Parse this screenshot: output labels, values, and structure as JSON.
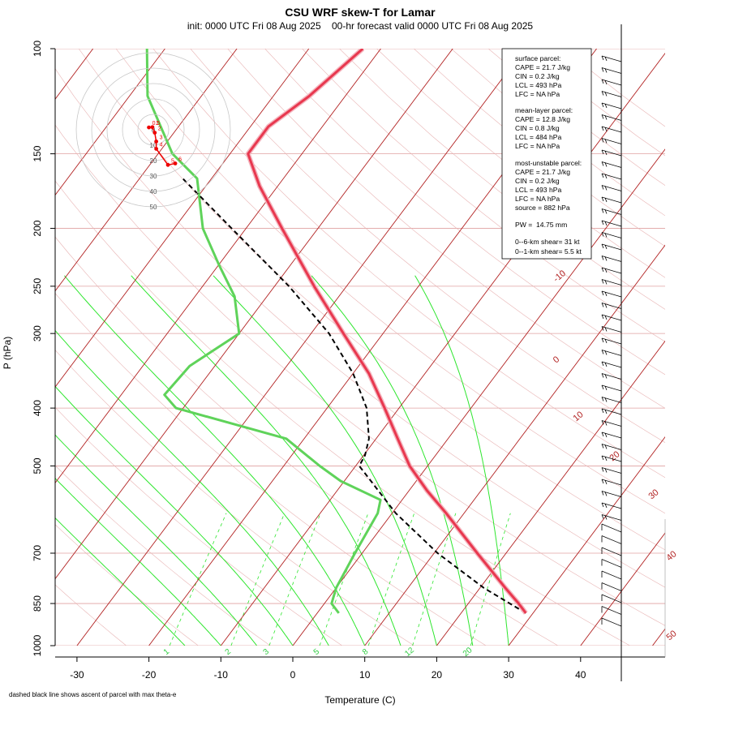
{
  "header": {
    "title": "CSU WRF skew-T for Lamar",
    "subtitle": "init: 0000 UTC Fri 08 Aug 2025    00-hr forecast valid 0000 UTC Fri 08 Aug 2025"
  },
  "footnote": "dashed black line shows ascent of parcel with max theta-e",
  "colors": {
    "temperature": "#e8384f",
    "dewpoint": "#5fd35a",
    "parcel": "#000000",
    "isotherm": "#b22222",
    "isobar": "#e0a0a0",
    "dry_adiabat": "#e8b4b4",
    "moist_adiabat": "#2ee62e",
    "mixing_ratio": "#2ee62e"
  },
  "stats": {
    "surface": {
      "heading": "surface parcel:",
      "lines": [
        "CAPE = 21.7 J/kg",
        "CIN = 0.2 J/kg",
        "LCL = 493 hPa",
        "LFC = NA hPa"
      ]
    },
    "mixed": {
      "heading": "mean-layer parcel:",
      "lines": [
        "CAPE = 12.8 J/kg",
        "CIN = 0.8 J/kg",
        "LCL = 484 hPa",
        "LFC = NA hPa"
      ]
    },
    "mu": {
      "heading": "most-unstable parcel:",
      "lines": [
        "CAPE = 21.7 J/kg",
        "CIN = 0.2 J/kg",
        "LCL = 493 hPa",
        "LFC = NA hPa",
        "source = 882 hPa"
      ]
    },
    "pw": "PW =  14.75 mm",
    "shear": [
      "0--6-km shear= 31 kt",
      "0--1-km shear= 5.5 kt"
    ]
  },
  "chart_data": {
    "type": "skew-t",
    "xlabel": "Temperature (C)",
    "ylabel": "P (hPa)",
    "x_ticks": [
      -30,
      -20,
      -10,
      0,
      10,
      20,
      30,
      40
    ],
    "y_ticks": [
      100,
      150,
      200,
      250,
      300,
      400,
      500,
      700,
      850,
      1000
    ],
    "isotherm_labels": [
      -10,
      0,
      10,
      20,
      30,
      40,
      50
    ],
    "mixing_ratio_labels": [
      1,
      2,
      3,
      5,
      8,
      12,
      20
    ],
    "hodograph_rings": [
      "0",
      "10",
      "20",
      "30",
      "40",
      "50"
    ],
    "hodograph_points": [
      {
        "label": "0.5",
        "u": -1.5,
        "v": 0.8
      },
      {
        "label": "1",
        "u": -0.3,
        "v": 0.9
      },
      {
        "label": "2",
        "u": 0.5,
        "v": -1.0
      },
      {
        "label": "3",
        "u": 1.0,
        "v": -4.0
      },
      {
        "label": "4",
        "u": 1.0,
        "v": -6.5
      },
      {
        "label": "5",
        "u": 5.0,
        "v": -12.0
      },
      {
        "label": "6",
        "u": 7.5,
        "v": -11.5
      }
    ],
    "temperature": [
      {
        "p": 882,
        "t": 29.0
      },
      {
        "p": 850,
        "t": 27.0
      },
      {
        "p": 800,
        "t": 23.5
      },
      {
        "p": 700,
        "t": 16.0
      },
      {
        "p": 600,
        "t": 7.5
      },
      {
        "p": 550,
        "t": 2.5
      },
      {
        "p": 500,
        "t": -2.5
      },
      {
        "p": 450,
        "t": -7.0
      },
      {
        "p": 400,
        "t": -12.0
      },
      {
        "p": 350,
        "t": -17.8
      },
      {
        "p": 300,
        "t": -25.5
      },
      {
        "p": 250,
        "t": -34.5
      },
      {
        "p": 200,
        "t": -45.0
      },
      {
        "p": 170,
        "t": -52.5
      },
      {
        "p": 150,
        "t": -57.5
      },
      {
        "p": 135,
        "t": -57.5
      },
      {
        "p": 120,
        "t": -55.0
      },
      {
        "p": 100,
        "t": -52.5
      }
    ],
    "dewpoint": [
      {
        "p": 882,
        "t": 3.0
      },
      {
        "p": 850,
        "t": 1.0
      },
      {
        "p": 800,
        "t": 0.0
      },
      {
        "p": 700,
        "t": -1.0
      },
      {
        "p": 600,
        "t": -2.0
      },
      {
        "p": 570,
        "t": -3.0
      },
      {
        "p": 530,
        "t": -10.5
      },
      {
        "p": 500,
        "t": -15.0
      },
      {
        "p": 450,
        "t": -22.5
      },
      {
        "p": 400,
        "t": -41.0
      },
      {
        "p": 380,
        "t": -44.0
      },
      {
        "p": 340,
        "t": -43.5
      },
      {
        "p": 300,
        "t": -40.0
      },
      {
        "p": 260,
        "t": -44.5
      },
      {
        "p": 230,
        "t": -50.0
      },
      {
        "p": 200,
        "t": -56.0
      },
      {
        "p": 165,
        "t": -62.0
      },
      {
        "p": 150,
        "t": -68.0
      },
      {
        "p": 120,
        "t": -77.5
      },
      {
        "p": 100,
        "t": -82.5
      }
    ],
    "parcel": [
      {
        "p": 882,
        "t": 29.0
      },
      {
        "p": 800,
        "t": 20.5
      },
      {
        "p": 700,
        "t": 10.5
      },
      {
        "p": 600,
        "t": 0.5
      },
      {
        "p": 500,
        "t": -9.5
      },
      {
        "p": 480,
        "t": -9.8
      },
      {
        "p": 450,
        "t": -11.0
      },
      {
        "p": 400,
        "t": -14.5
      },
      {
        "p": 350,
        "t": -20.0
      },
      {
        "p": 300,
        "t": -27.5
      },
      {
        "p": 250,
        "t": -38.0
      },
      {
        "p": 200,
        "t": -52.0
      },
      {
        "p": 165,
        "t": -64.0
      }
    ]
  }
}
